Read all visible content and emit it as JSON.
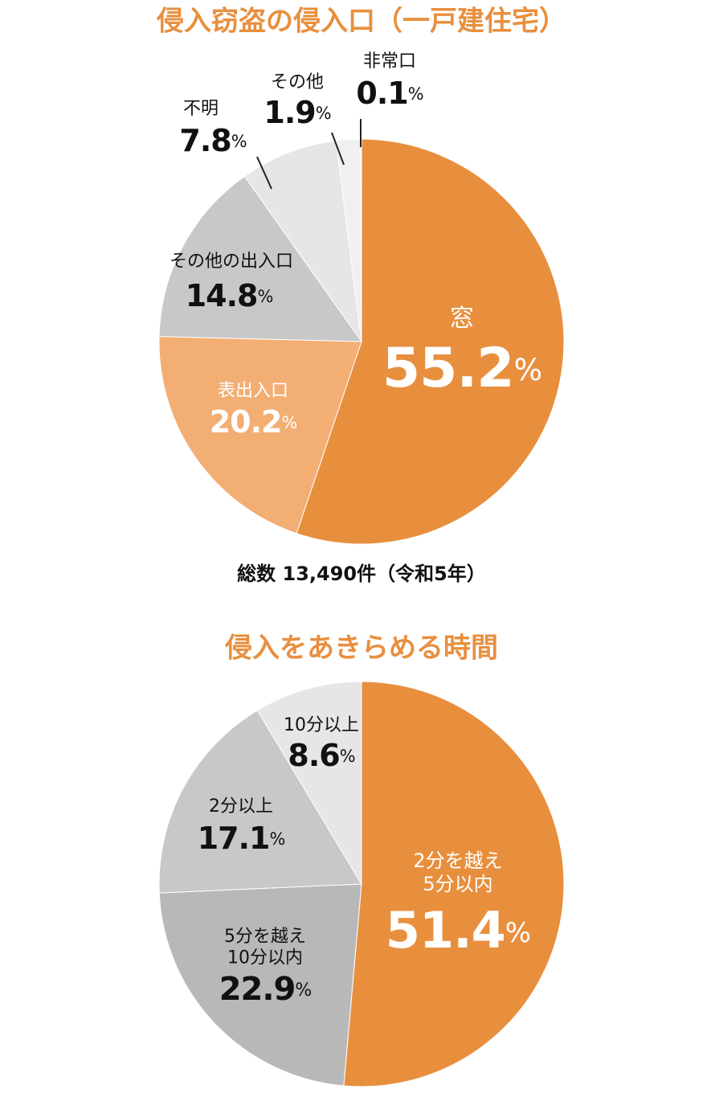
{
  "chart_data": [
    {
      "type": "pie",
      "title": "侵入窃盗の侵入口（一戸建住宅）",
      "categories": [
        "窓",
        "表出入口",
        "その他の出入口",
        "不明",
        "その他",
        "非常口"
      ],
      "values": [
        55.2,
        20.2,
        14.8,
        7.8,
        1.9,
        0.1
      ],
      "value_labels": [
        "55.2%",
        "20.2%",
        "14.8%",
        "7.8%",
        "1.9%",
        "0.1%"
      ],
      "colors": [
        "#e88f3e",
        "#f3ae74",
        "#c8c8c8",
        "#e6e6e6",
        "#f0f0f0",
        "#f7f7f7"
      ],
      "note": "総数 13,490件（令和5年）"
    },
    {
      "type": "pie",
      "title": "侵入をあきらめる時間",
      "categories": [
        "2分を越え\n5分以内",
        "5分を越え\n10分以内",
        "2分以上",
        "10分以上"
      ],
      "values": [
        51.4,
        22.9,
        17.1,
        8.6
      ],
      "value_labels": [
        "51.4%",
        "22.9%",
        "17.1%",
        "8.6%"
      ],
      "colors": [
        "#e88f3e",
        "#b8b8b8",
        "#c8c8c8",
        "#e6e6e6"
      ]
    }
  ]
}
